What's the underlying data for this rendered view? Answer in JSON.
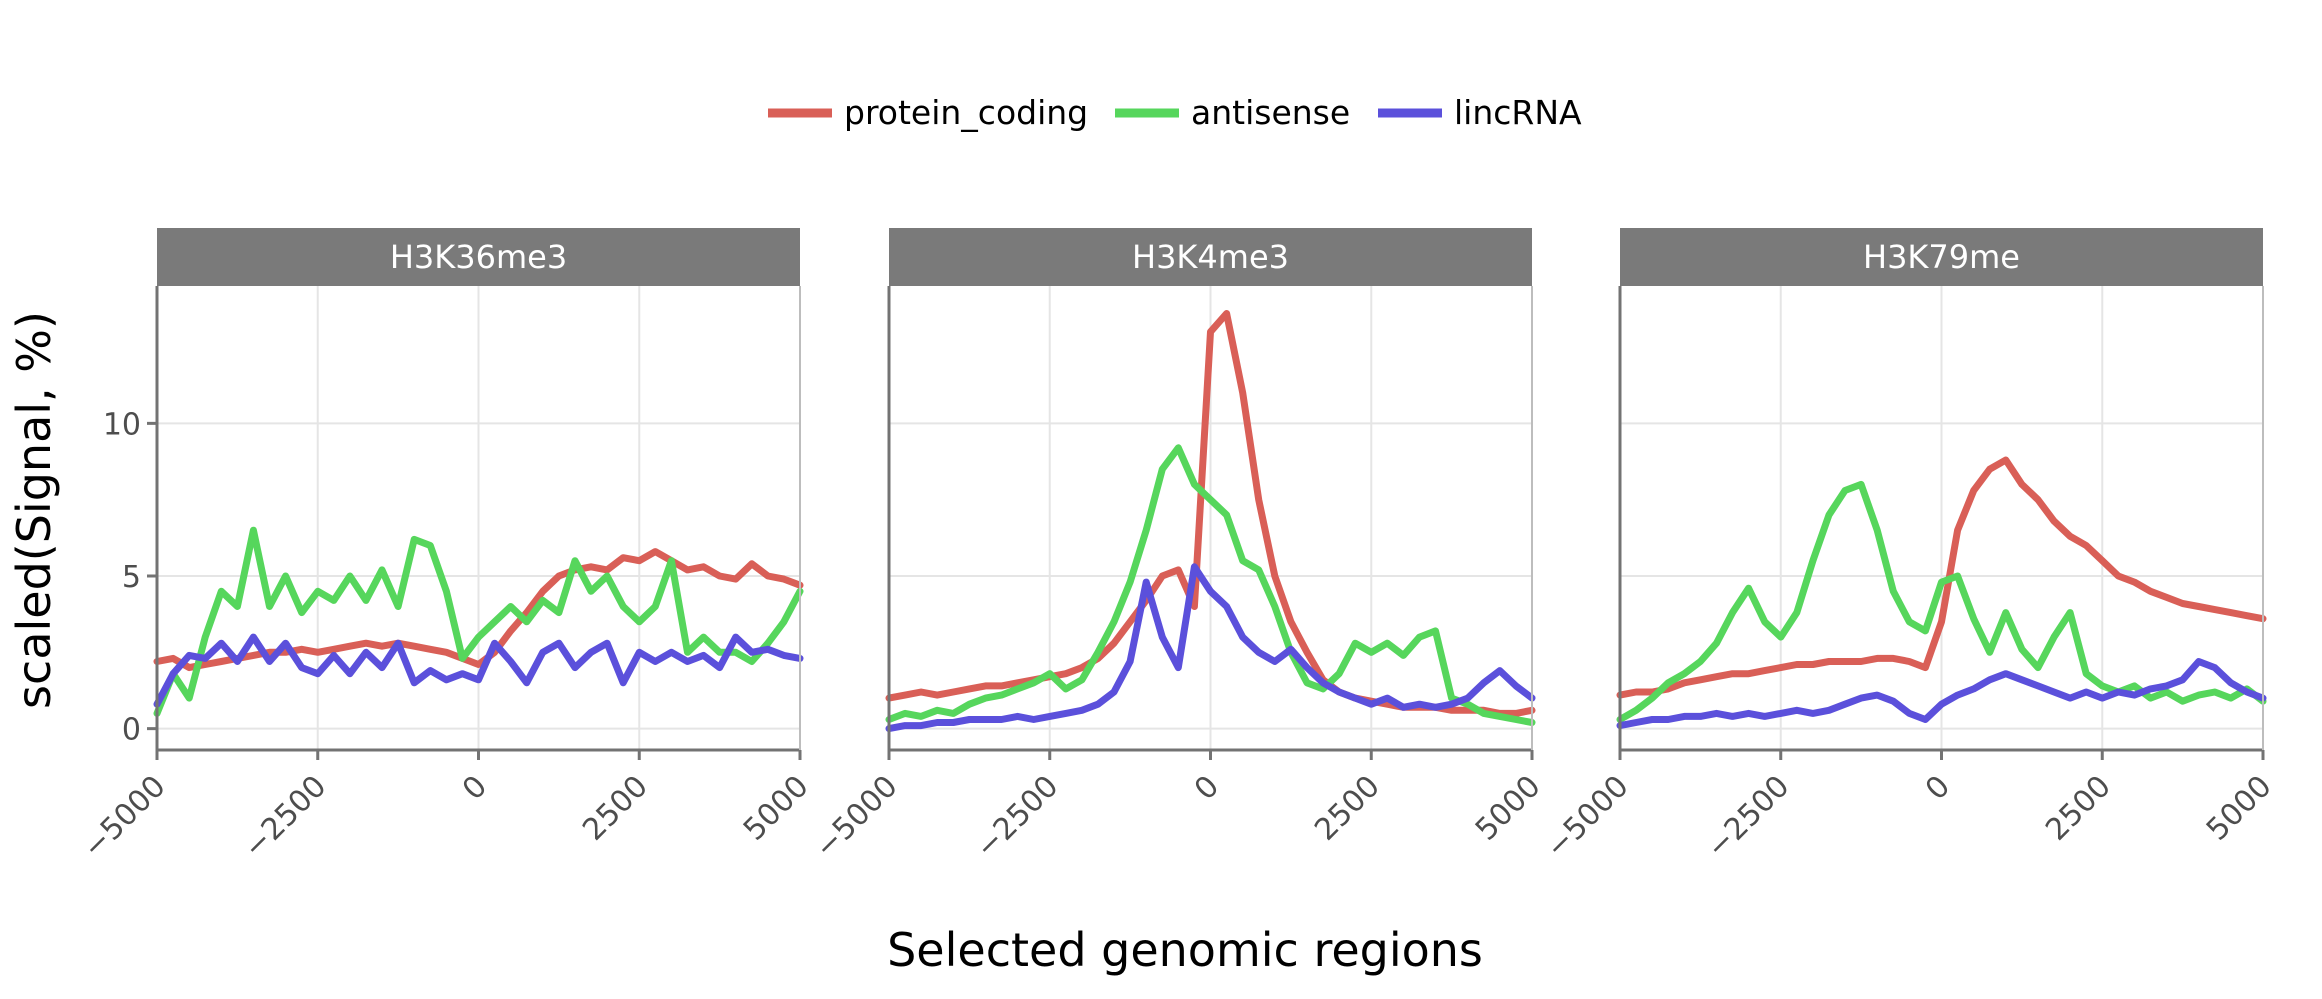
{
  "chart_data": {
    "type": "line",
    "xlabel": "Selected genomic regions",
    "ylabel": "scaled(Signal, %)",
    "xlim": [
      -5000,
      5000
    ],
    "ylim": [
      -0.7,
      14.5
    ],
    "x_ticks": [
      -5000,
      -2500,
      0,
      2500,
      5000
    ],
    "x_tick_labels": [
      "−5000",
      "−2500",
      "0",
      "2500",
      "5000"
    ],
    "y_ticks": [
      0,
      5,
      10
    ],
    "y_tick_labels": [
      "0",
      "5",
      "10"
    ],
    "grid": true,
    "legend": {
      "position": "top",
      "entries": [
        {
          "name": "protein_coding",
          "color": "#d95f57"
        },
        {
          "name": "antisense",
          "color": "#56d65c"
        },
        {
          "name": "lincRNA",
          "color": "#5b50db"
        }
      ]
    },
    "x": [
      -5000,
      -4750,
      -4500,
      -4250,
      -4000,
      -3750,
      -3500,
      -3250,
      -3000,
      -2750,
      -2500,
      -2250,
      -2000,
      -1750,
      -1500,
      -1250,
      -1000,
      -750,
      -500,
      -250,
      0,
      250,
      500,
      750,
      1000,
      1250,
      1500,
      1750,
      2000,
      2250,
      2500,
      2750,
      3000,
      3250,
      3500,
      3750,
      4000,
      4250,
      4500,
      4750,
      5000
    ],
    "panels": [
      {
        "title": "H3K36me3",
        "series": [
          {
            "name": "protein_coding",
            "values": [
              2.2,
              2.3,
              2.0,
              2.1,
              2.2,
              2.3,
              2.4,
              2.5,
              2.5,
              2.6,
              2.5,
              2.6,
              2.7,
              2.8,
              2.7,
              2.8,
              2.7,
              2.6,
              2.5,
              2.3,
              2.1,
              2.5,
              3.2,
              3.8,
              4.5,
              5.0,
              5.2,
              5.3,
              5.2,
              5.6,
              5.5,
              5.8,
              5.5,
              5.2,
              5.3,
              5.0,
              4.9,
              5.4,
              5.0,
              4.9,
              4.7
            ]
          },
          {
            "name": "antisense",
            "values": [
              0.5,
              1.8,
              1.0,
              3.0,
              4.5,
              4.0,
              6.5,
              4.0,
              5.0,
              3.8,
              4.5,
              4.2,
              5.0,
              4.2,
              5.2,
              4.0,
              6.2,
              6.0,
              4.5,
              2.3,
              3.0,
              3.5,
              4.0,
              3.5,
              4.2,
              3.8,
              5.5,
              4.5,
              5.0,
              4.0,
              3.5,
              4.0,
              5.5,
              2.5,
              3.0,
              2.5,
              2.5,
              2.2,
              2.8,
              3.5,
              4.5
            ]
          },
          {
            "name": "lincRNA",
            "values": [
              0.8,
              1.8,
              2.4,
              2.3,
              2.8,
              2.2,
              3.0,
              2.2,
              2.8,
              2.0,
              1.8,
              2.4,
              1.8,
              2.5,
              2.0,
              2.8,
              1.5,
              1.9,
              1.6,
              1.8,
              1.6,
              2.8,
              2.2,
              1.5,
              2.5,
              2.8,
              2.0,
              2.5,
              2.8,
              1.5,
              2.5,
              2.2,
              2.5,
              2.2,
              2.4,
              2.0,
              3.0,
              2.5,
              2.6,
              2.4,
              2.3
            ]
          }
        ]
      },
      {
        "title": "H3K4me3",
        "series": [
          {
            "name": "protein_coding",
            "values": [
              1.0,
              1.1,
              1.2,
              1.1,
              1.2,
              1.3,
              1.4,
              1.4,
              1.5,
              1.6,
              1.7,
              1.8,
              2.0,
              2.3,
              2.8,
              3.5,
              4.2,
              5.0,
              5.2,
              4.0,
              13.0,
              13.6,
              11.0,
              7.5,
              5.0,
              3.5,
              2.5,
              1.6,
              1.2,
              1.0,
              0.9,
              0.8,
              0.7,
              0.7,
              0.7,
              0.6,
              0.6,
              0.6,
              0.5,
              0.5,
              0.6
            ]
          },
          {
            "name": "antisense",
            "values": [
              0.3,
              0.5,
              0.4,
              0.6,
              0.5,
              0.8,
              1.0,
              1.1,
              1.3,
              1.5,
              1.8,
              1.3,
              1.6,
              2.5,
              3.5,
              4.8,
              6.5,
              8.5,
              9.2,
              8.0,
              7.5,
              7.0,
              5.5,
              5.2,
              4.0,
              2.5,
              1.5,
              1.3,
              1.8,
              2.8,
              2.5,
              2.8,
              2.4,
              3.0,
              3.2,
              1.0,
              0.8,
              0.5,
              0.4,
              0.3,
              0.2
            ]
          },
          {
            "name": "lincRNA",
            "values": [
              0.0,
              0.1,
              0.1,
              0.2,
              0.2,
              0.3,
              0.3,
              0.3,
              0.4,
              0.3,
              0.4,
              0.5,
              0.6,
              0.8,
              1.2,
              2.2,
              4.8,
              3.0,
              2.0,
              5.3,
              4.5,
              4.0,
              3.0,
              2.5,
              2.2,
              2.6,
              2.0,
              1.5,
              1.2,
              1.0,
              0.8,
              1.0,
              0.7,
              0.8,
              0.7,
              0.8,
              1.0,
              1.5,
              1.9,
              1.4,
              1.0
            ]
          }
        ]
      },
      {
        "title": "H3K79me",
        "series": [
          {
            "name": "protein_coding",
            "values": [
              1.1,
              1.2,
              1.2,
              1.3,
              1.5,
              1.6,
              1.7,
              1.8,
              1.8,
              1.9,
              2.0,
              2.1,
              2.1,
              2.2,
              2.2,
              2.2,
              2.3,
              2.3,
              2.2,
              2.0,
              3.5,
              6.5,
              7.8,
              8.5,
              8.8,
              8.0,
              7.5,
              6.8,
              6.3,
              6.0,
              5.5,
              5.0,
              4.8,
              4.5,
              4.3,
              4.1,
              4.0,
              3.9,
              3.8,
              3.7,
              3.6
            ]
          },
          {
            "name": "antisense",
            "values": [
              0.3,
              0.6,
              1.0,
              1.5,
              1.8,
              2.2,
              2.8,
              3.8,
              4.6,
              3.5,
              3.0,
              3.8,
              5.5,
              7.0,
              7.8,
              8.0,
              6.5,
              4.5,
              3.5,
              3.2,
              4.8,
              5.0,
              3.6,
              2.5,
              3.8,
              2.6,
              2.0,
              3.0,
              3.8,
              1.8,
              1.4,
              1.2,
              1.4,
              1.0,
              1.2,
              0.9,
              1.1,
              1.2,
              1.0,
              1.3,
              0.9
            ]
          },
          {
            "name": "lincRNA",
            "values": [
              0.1,
              0.2,
              0.3,
              0.3,
              0.4,
              0.4,
              0.5,
              0.4,
              0.5,
              0.4,
              0.5,
              0.6,
              0.5,
              0.6,
              0.8,
              1.0,
              1.1,
              0.9,
              0.5,
              0.3,
              0.8,
              1.1,
              1.3,
              1.6,
              1.8,
              1.6,
              1.4,
              1.2,
              1.0,
              1.2,
              1.0,
              1.2,
              1.1,
              1.3,
              1.4,
              1.6,
              2.2,
              2.0,
              1.5,
              1.2,
              1.0
            ]
          }
        ]
      }
    ]
  }
}
